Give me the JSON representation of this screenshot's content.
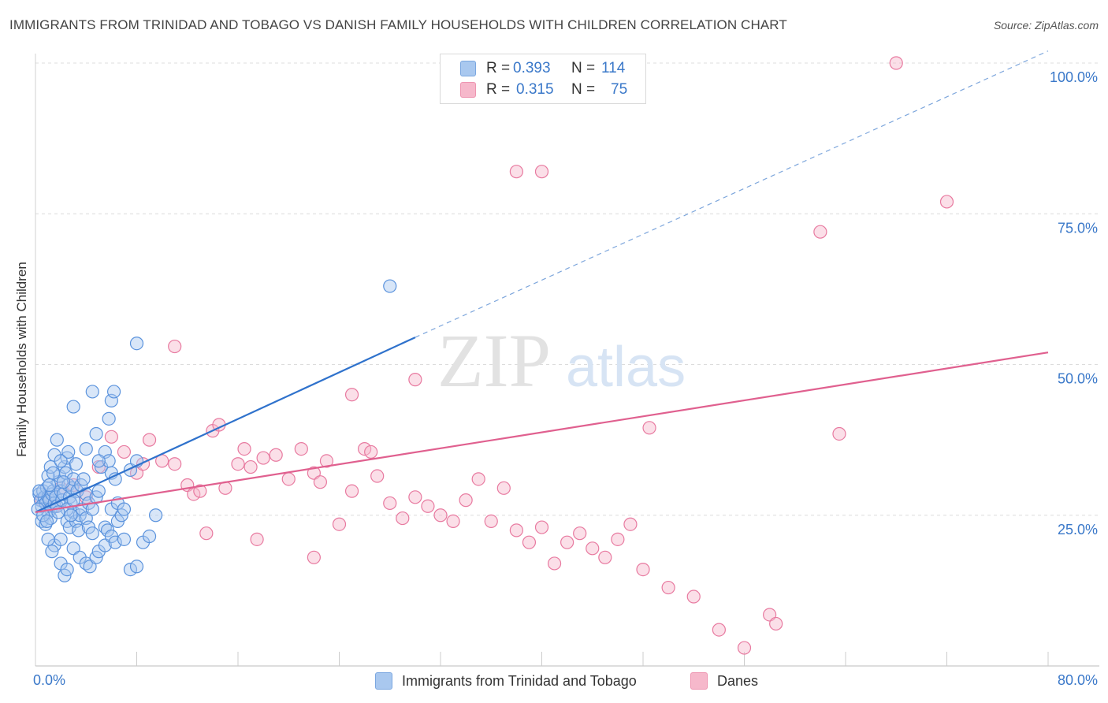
{
  "title": "IMMIGRANTS FROM TRINIDAD AND TOBAGO VS DANISH FAMILY HOUSEHOLDS WITH CHILDREN CORRELATION CHART",
  "source": "Source: ZipAtlas.com",
  "watermark": {
    "zip": "ZIP",
    "atlas": "atlas"
  },
  "legend_top": {
    "rows": [
      {
        "r_label": "R =",
        "r_value": "0.393",
        "n_label": "N =",
        "n_value": "114",
        "color": "#a9c8ef"
      },
      {
        "r_label": "R =",
        "r_value": "0.315",
        "n_label": "N =",
        "n_value": "75",
        "color": "#f6b8cb"
      }
    ]
  },
  "chart_data": {
    "type": "scatter",
    "title": "IMMIGRANTS FROM TRINIDAD AND TOBAGO VS DANISH FAMILY HOUSEHOLDS WITH CHILDREN CORRELATION CHART",
    "xlabel": "",
    "ylabel": "Family Households with Children",
    "xlim": [
      0,
      80
    ],
    "ylim": [
      0,
      100
    ],
    "x_tick_labels": [
      "0.0%",
      "80.0%"
    ],
    "y_tick_labels": [
      "25.0%",
      "50.0%",
      "75.0%",
      "100.0%"
    ],
    "y_ticks": [
      25,
      50,
      75,
      100
    ],
    "grid": "horizontal dashed",
    "legend_position": "bottom-center",
    "series": [
      {
        "name": "Immigrants from Trinidad and Tobago",
        "color": "#5b93dd",
        "fill": "#a9c8ef",
        "trend": {
          "x": [
            0,
            30
          ],
          "y": [
            25.5,
            54.5
          ],
          "extend_to": [
            80,
            102
          ]
        },
        "points": [
          [
            0.3,
            28.5
          ],
          [
            0.4,
            27.5
          ],
          [
            0.5,
            26.5
          ],
          [
            0.6,
            29.0
          ],
          [
            0.7,
            28.0
          ],
          [
            0.8,
            27.0
          ],
          [
            0.9,
            29.5
          ],
          [
            1.0,
            28.0
          ],
          [
            1.1,
            27.5
          ],
          [
            1.2,
            26.0
          ],
          [
            1.3,
            28.5
          ],
          [
            1.4,
            29.0
          ],
          [
            0.5,
            24.0
          ],
          [
            0.8,
            23.5
          ],
          [
            1.0,
            25.5
          ],
          [
            1.2,
            24.5
          ],
          [
            1.5,
            27.0
          ],
          [
            1.6,
            28.0
          ],
          [
            1.7,
            26.5
          ],
          [
            1.8,
            30.5
          ],
          [
            1.9,
            31.5
          ],
          [
            2.0,
            29.0
          ],
          [
            2.1,
            27.5
          ],
          [
            2.2,
            28.5
          ],
          [
            2.3,
            33.0
          ],
          [
            2.4,
            32.0
          ],
          [
            2.5,
            34.5
          ],
          [
            2.6,
            30.0
          ],
          [
            2.7,
            28.0
          ],
          [
            2.8,
            27.0
          ],
          [
            2.9,
            29.5
          ],
          [
            3.0,
            31.0
          ],
          [
            1.0,
            31.5
          ],
          [
            1.2,
            33.0
          ],
          [
            1.5,
            35.0
          ],
          [
            1.7,
            37.5
          ],
          [
            2.0,
            34.0
          ],
          [
            2.2,
            30.5
          ],
          [
            2.5,
            24.0
          ],
          [
            2.7,
            23.0
          ],
          [
            3.0,
            25.5
          ],
          [
            3.2,
            24.0
          ],
          [
            3.4,
            22.5
          ],
          [
            3.5,
            25.0
          ],
          [
            3.7,
            26.0
          ],
          [
            4.0,
            24.5
          ],
          [
            4.2,
            23.0
          ],
          [
            4.5,
            22.0
          ],
          [
            3.3,
            29.0
          ],
          [
            3.6,
            30.0
          ],
          [
            3.8,
            31.0
          ],
          [
            4.0,
            28.5
          ],
          [
            4.2,
            27.0
          ],
          [
            4.5,
            26.0
          ],
          [
            4.8,
            28.0
          ],
          [
            5.0,
            29.0
          ],
          [
            5.2,
            33.0
          ],
          [
            5.5,
            35.5
          ],
          [
            5.8,
            34.0
          ],
          [
            6.0,
            32.0
          ],
          [
            6.3,
            31.0
          ],
          [
            1.5,
            20.0
          ],
          [
            1.3,
            19.0
          ],
          [
            2.0,
            21.0
          ],
          [
            3.0,
            19.5
          ],
          [
            3.5,
            18.0
          ],
          [
            4.0,
            17.0
          ],
          [
            4.3,
            16.5
          ],
          [
            4.8,
            18.0
          ],
          [
            5.0,
            19.0
          ],
          [
            5.5,
            20.0
          ],
          [
            2.0,
            17.0
          ],
          [
            2.3,
            15.0
          ],
          [
            2.5,
            16.0
          ],
          [
            1.0,
            21.0
          ],
          [
            6.5,
            24.0
          ],
          [
            6.8,
            25.0
          ],
          [
            5.5,
            23.0
          ],
          [
            5.7,
            22.5
          ],
          [
            6.0,
            21.5
          ],
          [
            6.3,
            20.5
          ],
          [
            7.0,
            21.0
          ],
          [
            7.5,
            16.0
          ],
          [
            8.0,
            16.5
          ],
          [
            8.5,
            20.5
          ],
          [
            9.0,
            21.5
          ],
          [
            9.5,
            25.0
          ],
          [
            6.0,
            26.0
          ],
          [
            6.5,
            27.0
          ],
          [
            7.0,
            26.0
          ],
          [
            7.5,
            32.5
          ],
          [
            8.0,
            34.0
          ],
          [
            6.0,
            44.0
          ],
          [
            5.8,
            41.0
          ],
          [
            4.5,
            45.5
          ],
          [
            3.0,
            43.0
          ],
          [
            4.8,
            38.5
          ],
          [
            6.2,
            45.5
          ],
          [
            8.0,
            53.5
          ],
          [
            28.0,
            63.0
          ],
          [
            2.5,
            26.0
          ],
          [
            2.8,
            25.0
          ],
          [
            3.0,
            27.5
          ],
          [
            1.8,
            25.5
          ],
          [
            0.2,
            26.0
          ],
          [
            0.3,
            29.0
          ],
          [
            0.6,
            25.0
          ],
          [
            0.9,
            24.0
          ],
          [
            1.1,
            30.0
          ],
          [
            1.4,
            32.0
          ],
          [
            2.6,
            35.5
          ],
          [
            3.2,
            33.5
          ],
          [
            4.0,
            36.0
          ],
          [
            5.0,
            34.0
          ]
        ]
      },
      {
        "name": "Danes",
        "color": "#e87aa0",
        "fill": "#f6b8cb",
        "trend": {
          "x": [
            0,
            80
          ],
          "y": [
            25.5,
            52.0
          ]
        },
        "points": [
          [
            0.5,
            27.5
          ],
          [
            1.0,
            28.0
          ],
          [
            1.5,
            26.5
          ],
          [
            2.0,
            29.5
          ],
          [
            3.0,
            30.0
          ],
          [
            4.0,
            28.0
          ],
          [
            5.0,
            33.0
          ],
          [
            6.0,
            38.0
          ],
          [
            7.0,
            35.5
          ],
          [
            8.0,
            32.0
          ],
          [
            8.5,
            33.5
          ],
          [
            9.0,
            37.5
          ],
          [
            10.0,
            34.0
          ],
          [
            11.0,
            33.5
          ],
          [
            12.0,
            30.0
          ],
          [
            12.5,
            28.5
          ],
          [
            13.0,
            29.0
          ],
          [
            14.0,
            39.0
          ],
          [
            14.5,
            40.0
          ],
          [
            15.0,
            29.5
          ],
          [
            16.0,
            33.5
          ],
          [
            16.5,
            36.0
          ],
          [
            17.0,
            33.0
          ],
          [
            18.0,
            34.5
          ],
          [
            19.0,
            35.0
          ],
          [
            20.0,
            31.0
          ],
          [
            21.0,
            36.0
          ],
          [
            22.0,
            32.0
          ],
          [
            22.5,
            30.5
          ],
          [
            23.0,
            34.0
          ],
          [
            24.0,
            23.5
          ],
          [
            25.0,
            29.0
          ],
          [
            26.0,
            36.0
          ],
          [
            27.0,
            31.5
          ],
          [
            28.0,
            27.0
          ],
          [
            29.0,
            24.5
          ],
          [
            30.0,
            28.0
          ],
          [
            31.0,
            26.5
          ],
          [
            32.0,
            25.0
          ],
          [
            33.0,
            24.0
          ],
          [
            34.0,
            27.5
          ],
          [
            35.0,
            31.0
          ],
          [
            36.0,
            24.0
          ],
          [
            37.0,
            29.5
          ],
          [
            38.0,
            22.5
          ],
          [
            39.0,
            20.5
          ],
          [
            40.0,
            23.0
          ],
          [
            41.0,
            17.0
          ],
          [
            42.0,
            20.5
          ],
          [
            43.0,
            22.0
          ],
          [
            44.0,
            19.5
          ],
          [
            45.0,
            18.0
          ],
          [
            46.0,
            21.0
          ],
          [
            47.0,
            23.5
          ],
          [
            48.0,
            16.0
          ],
          [
            50.0,
            13.0
          ],
          [
            52.0,
            11.5
          ],
          [
            54.0,
            6.0
          ],
          [
            56.0,
            3.0
          ],
          [
            38.0,
            82.0
          ],
          [
            40.0,
            82.0
          ],
          [
            30.0,
            47.5
          ],
          [
            25.0,
            45.0
          ],
          [
            26.5,
            35.5
          ],
          [
            13.5,
            22.0
          ],
          [
            17.5,
            21.0
          ],
          [
            22.0,
            18.0
          ],
          [
            11.0,
            53.0
          ],
          [
            48.5,
            39.5
          ],
          [
            58.0,
            8.5
          ],
          [
            58.5,
            7.0
          ],
          [
            63.5,
            38.5
          ],
          [
            62.0,
            72.0
          ],
          [
            68.0,
            100.0
          ],
          [
            72.0,
            77.0
          ]
        ]
      }
    ]
  }
}
